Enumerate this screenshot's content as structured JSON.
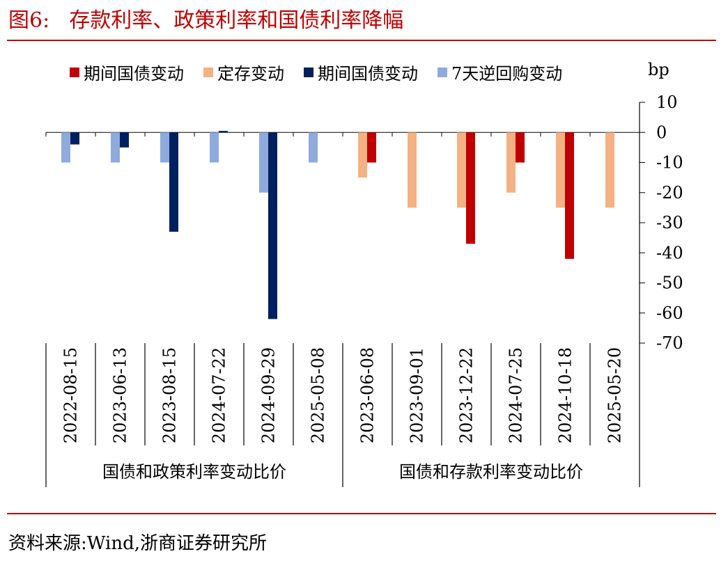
{
  "figure": {
    "label": "图6:",
    "title": "存款利率、政策利率和国债利率降幅",
    "source": "资料来源:Wind,浙商证券研究所"
  },
  "colors": {
    "accent": "#c00000",
    "guozhai_red": "#c00000",
    "dingcun": "#f4b183",
    "guozhai_navy": "#002060",
    "repo": "#8faadc"
  },
  "legend": [
    {
      "label": "期间国债变动",
      "color": "#c00000"
    },
    {
      "label": "定存变动",
      "color": "#f4b183"
    },
    {
      "label": "期间国债变动",
      "color": "#002060"
    },
    {
      "label": "7天逆回购变动",
      "color": "#8faadc"
    }
  ],
  "chart_data": {
    "type": "bar",
    "unit": "bp",
    "ylim": [
      -70,
      10
    ],
    "yticks": [
      "10",
      "0",
      "-10",
      "-20",
      "-30",
      "-40",
      "-50",
      "-60",
      "-70"
    ],
    "groups": [
      {
        "label": "国债和政策利率变动比价",
        "categories": [
          "2022-08-15",
          "2023-06-13",
          "2023-08-15",
          "2024-07-22",
          "2024-09-29",
          "2025-05-08"
        ],
        "series": [
          {
            "name": "7天逆回购变动",
            "color": "#8faadc",
            "values": [
              -10,
              -10,
              -10,
              -10,
              -20,
              -10
            ]
          },
          {
            "name": "期间国债变动",
            "color": "#002060",
            "values": [
              -4,
              -5,
              -33,
              0.5,
              -62,
              0
            ]
          }
        ]
      },
      {
        "label": "国债和存款利率变动比价",
        "categories": [
          "2023-06-08",
          "2023-09-01",
          "2023-12-22",
          "2024-07-25",
          "2024-10-18",
          "2025-05-20"
        ],
        "series": [
          {
            "name": "定存变动",
            "color": "#f4b183",
            "values": [
              -15,
              -25,
              -25,
              -20,
              -25,
              -25
            ]
          },
          {
            "name": "期间国债变动",
            "color": "#c00000",
            "values": [
              -10,
              0,
              -37,
              -10,
              -42,
              0
            ]
          }
        ]
      }
    ]
  }
}
